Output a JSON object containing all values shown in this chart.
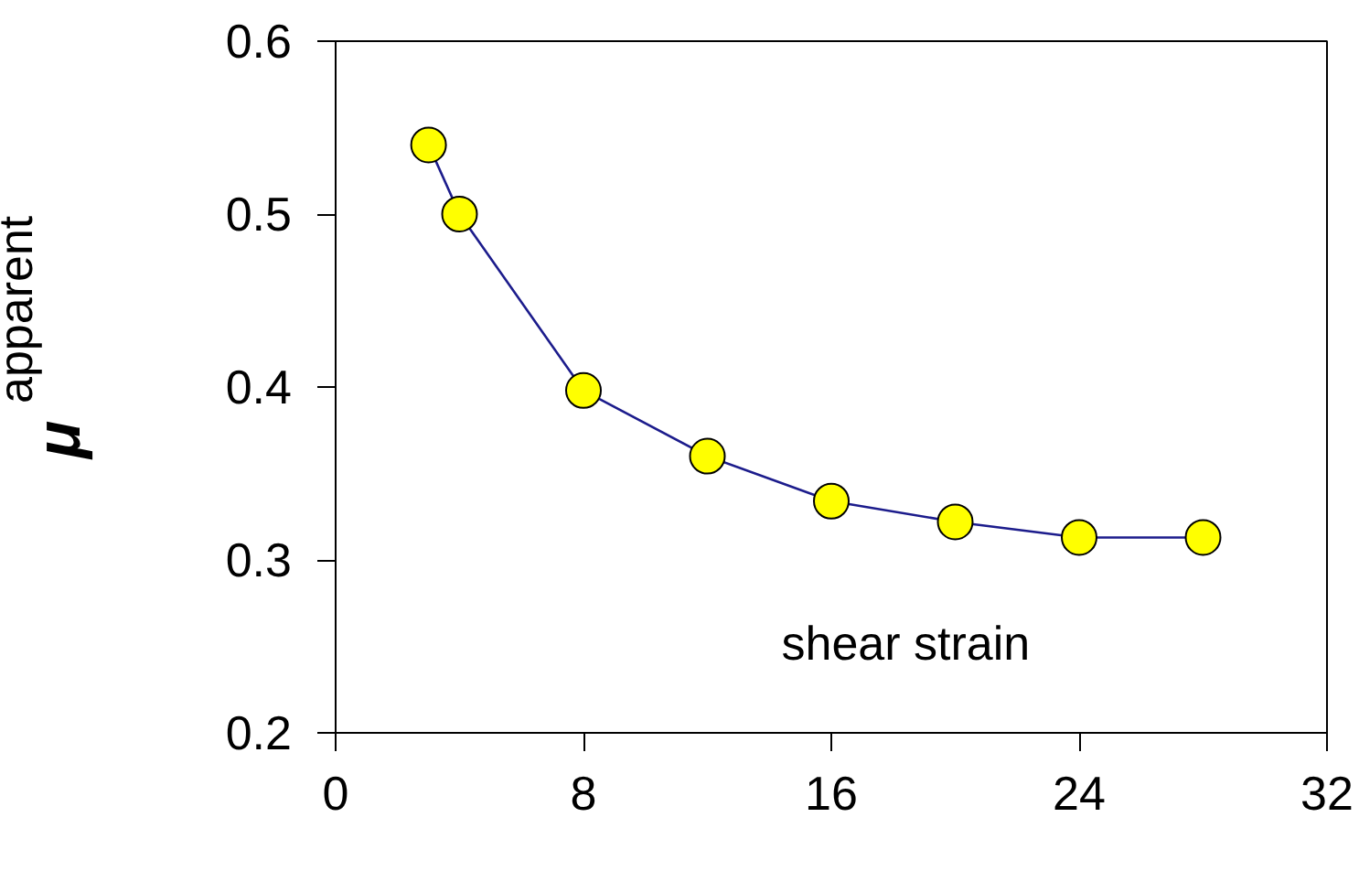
{
  "chart_data": {
    "type": "line",
    "xlabel": "shear strain",
    "ylabel": "μ$_{apparent}$",
    "x": [
      3,
      4,
      8,
      12,
      16,
      20,
      24,
      28
    ],
    "series": [
      {
        "color": "#1c1c8c",
        "values": [
          0.54,
          0.5,
          0.398,
          0.36,
          0.334,
          0.322,
          0.313,
          0.313
        ]
      }
    ],
    "marker": "circle",
    "grid": false,
    "xlim": [
      0,
      32
    ],
    "xticks": [
      0,
      8,
      16,
      24,
      32
    ],
    "ylim": [
      0.2,
      0.6
    ],
    "yticks": [
      0.2,
      0.3,
      0.4,
      0.5,
      0.6
    ]
  }
}
